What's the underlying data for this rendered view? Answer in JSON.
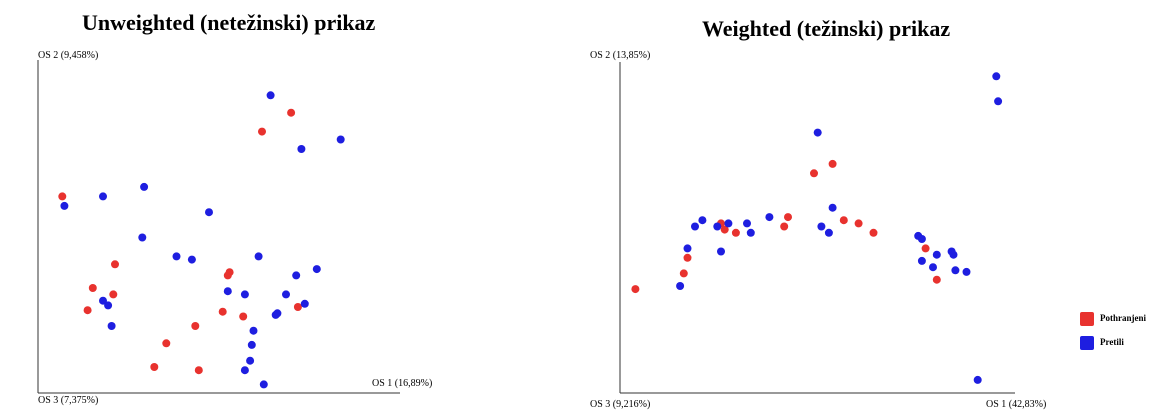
{
  "legend": [
    {
      "label": "Pothranjeni",
      "color": "#e8322e"
    },
    {
      "label": "Pretili",
      "color": "#1e1ee0"
    }
  ],
  "chart_data": [
    {
      "type": "scatter",
      "title": "Unweighted (netežinski) prikaz",
      "axis_labels": {
        "y": "OS 2 (9,458%)",
        "x": "OS 1 (16,89%)",
        "origin": "OS 3 (7,375%)"
      },
      "xlim": [
        0,
        100
      ],
      "ylim": [
        0,
        100
      ],
      "series": [
        {
          "name": "Pothranjeni",
          "color": "#e8322e",
          "points": [
            [
              3.6,
              60
            ],
            [
              18.5,
              29
            ],
            [
              12.5,
              31
            ],
            [
              19,
              38.5
            ],
            [
              11,
              24
            ],
            [
              70.5,
              86.5
            ],
            [
              62,
              80.5
            ],
            [
              52,
              35
            ],
            [
              52.5,
              36
            ],
            [
              50.5,
              23.5
            ],
            [
              56.5,
              22
            ],
            [
              42.5,
              19
            ],
            [
              43.5,
              5
            ],
            [
              72.5,
              25
            ],
            [
              34,
              13.5
            ],
            [
              30.5,
              6
            ]
          ]
        },
        {
          "name": "Pretili",
          "color": "#1e1ee0",
          "points": [
            [
              64.5,
              92
            ],
            [
              73.5,
              75
            ],
            [
              85,
              78
            ],
            [
              15.5,
              60
            ],
            [
              27.5,
              63
            ],
            [
              4.2,
              57
            ],
            [
              46.5,
              55
            ],
            [
              27,
              47
            ],
            [
              37,
              41
            ],
            [
              41.5,
              40
            ],
            [
              61,
              41
            ],
            [
              72,
              35
            ],
            [
              57,
              29
            ],
            [
              66,
              22.5
            ],
            [
              52,
              30
            ],
            [
              74.5,
              26
            ],
            [
              69,
              29
            ],
            [
              66.5,
              23
            ],
            [
              78,
              37
            ],
            [
              17,
              25.5
            ],
            [
              15.5,
              27
            ],
            [
              18,
              19
            ],
            [
              59.5,
              17.5
            ],
            [
              59,
              13
            ],
            [
              58.5,
              8
            ],
            [
              57,
              5
            ],
            [
              62.5,
              0.5
            ]
          ]
        }
      ]
    },
    {
      "type": "scatter",
      "title": "Weighted (težinski) prikaz",
      "axis_labels": {
        "y": "OS 2 (13,85%)",
        "x": "OS 1 (42,83%)",
        "origin": "OS 3 (9,216%)"
      },
      "xlim": [
        0,
        100
      ],
      "ylim": [
        0,
        100
      ],
      "series": [
        {
          "name": "Pothranjeni",
          "color": "#e8322e",
          "points": [
            [
              55,
              70
            ],
            [
              50,
              67
            ],
            [
              43,
              53
            ],
            [
              42,
              50
            ],
            [
              25,
              51
            ],
            [
              26,
              49
            ],
            [
              29,
              48
            ],
            [
              58,
              52
            ],
            [
              62,
              51
            ],
            [
              66,
              48
            ],
            [
              80,
              43
            ],
            [
              83,
              33
            ],
            [
              15,
              35
            ],
            [
              2,
              30
            ],
            [
              16,
              40
            ]
          ]
        },
        {
          "name": "Pretili",
          "color": "#1e1ee0",
          "points": [
            [
              99,
              98
            ],
            [
              99.5,
              90
            ],
            [
              51,
              80
            ],
            [
              20,
              52
            ],
            [
              18,
              50
            ],
            [
              24,
              50
            ],
            [
              27,
              51
            ],
            [
              32,
              51
            ],
            [
              38,
              53
            ],
            [
              55,
              56
            ],
            [
              52,
              50
            ],
            [
              54,
              48
            ],
            [
              33,
              48
            ],
            [
              25,
              42
            ],
            [
              16,
              43
            ],
            [
              14,
              31
            ],
            [
              78,
              47
            ],
            [
              79,
              46
            ],
            [
              83,
              41
            ],
            [
              87,
              42
            ],
            [
              87.5,
              41
            ],
            [
              79,
              39
            ],
            [
              82,
              37
            ],
            [
              88,
              36
            ],
            [
              91,
              35.5
            ],
            [
              94,
              1
            ]
          ]
        }
      ]
    }
  ]
}
